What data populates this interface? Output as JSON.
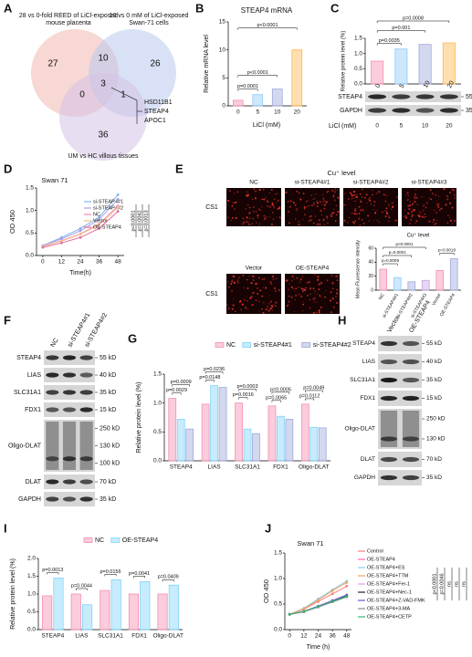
{
  "panel_labels": [
    "A",
    "B",
    "C",
    "D",
    "E",
    "F",
    "G",
    "H",
    "I",
    "J"
  ],
  "venn": {
    "sets": [
      "28 vs 0-fold REED of LiCl-exposed mouse placenta",
      "10 vs 0 mM of LiCl-exposed Swan-71 cells",
      "UM vs HC villous tissues"
    ],
    "counts": [
      27,
      10,
      26,
      3,
      0,
      1,
      36
    ],
    "genes": [
      "HSD11B1",
      "STEAP4",
      "APOC1"
    ]
  },
  "images": {
    "title": "Cu⁺ level",
    "columns": [
      "NC",
      "si-STEAP4#1",
      "si-STEAP4#2",
      "si-STEAP4#3"
    ],
    "columns2": [
      "Vector",
      "OE-STEAP4"
    ],
    "row_labels": [
      "CS1",
      "CS1"
    ]
  },
  "blots": {
    "C": {
      "rows": [
        {
          "label": "STEAP4",
          "markers": [
            "55 kD"
          ]
        },
        {
          "label": "GAPDH",
          "markers": [
            "35 kD"
          ]
        }
      ]
    },
    "F": {
      "lanes": [
        "NC",
        "si-STEAP4#1",
        "si-STEAP4#2"
      ],
      "rows": [
        {
          "label": "STEAP4",
          "markers": [
            "55 kD"
          ]
        },
        {
          "label": "LIAS",
          "markers": [
            "40 kD"
          ]
        },
        {
          "label": "SLC31A1",
          "markers": [
            "35 kD"
          ]
        },
        {
          "label": "FDX1",
          "markers": [
            "15 kD"
          ]
        },
        {
          "label": "Oligo-DLAT",
          "markers": [
            "250 kD",
            "130 kD",
            "100 kD"
          ]
        },
        {
          "label": "DLAT",
          "markers": [
            "70 kD"
          ]
        },
        {
          "label": "GAPDH",
          "markers": [
            "35 kD"
          ]
        }
      ]
    },
    "H": {
      "lanes": [
        "Vector",
        "OE-STEAP4"
      ],
      "rows": [
        {
          "label": "STEAP4",
          "markers": [
            "55 kD"
          ]
        },
        {
          "label": "LIAS",
          "markers": [
            "40 kD"
          ]
        },
        {
          "label": "SLC31A1",
          "markers": [
            "35 kD"
          ]
        },
        {
          "label": "FDX1",
          "markers": [
            "15 kD"
          ]
        },
        {
          "label": "Oligo-DLAT",
          "markers": [
            "250 kD",
            "130 kD"
          ]
        },
        {
          "label": "DLAT",
          "markers": [
            "70 kD"
          ]
        },
        {
          "label": "GAPDH",
          "markers": [
            "35 kD"
          ]
        }
      ]
    }
  },
  "chart_data": [
    {
      "type": "bar",
      "title": "STEAP4 mRNA",
      "ylabel": "Relative mRNA level",
      "xlabel": "LiCl (mM)",
      "categories": [
        "0",
        "5",
        "10",
        "20"
      ],
      "values": [
        1.0,
        2.0,
        3.0,
        10.0
      ],
      "colors": [
        "#f48fb1",
        "#90caf9",
        "#9fa8da",
        "#ffb74d"
      ],
      "ylim": [
        0,
        15
      ],
      "yticks": [
        0,
        5,
        10,
        15
      ],
      "annotations": [
        "p=0.0001",
        "p<0.0001",
        "p<0.0001"
      ]
    },
    {
      "type": "bar",
      "ylabel": "Relative protein level (%)",
      "xlabel": "LiCl (mM)",
      "categories": [
        "0",
        "5",
        "10",
        "20"
      ],
      "values": [
        0.75,
        1.15,
        1.3,
        1.35
      ],
      "colors": [
        "#f48fb1",
        "#90caf9",
        "#9fa8da",
        "#ffb74d"
      ],
      "ylim": [
        0,
        1.5
      ],
      "yticks": [
        {
          "value": 0,
          "label": "0.0"
        },
        0.5,
        {
          "value": 1,
          "label": "1.0"
        },
        1.5
      ],
      "annotations": [
        "p=0.0035",
        "p=0.001",
        "p=0.0008"
      ]
    },
    {
      "type": "line",
      "title": "Swan 71",
      "xlabel": "Time(h)",
      "ylabel": "OD 450",
      "x": [
        0,
        12,
        24,
        36,
        48
      ],
      "xlim": [
        -4,
        52
      ],
      "xticks": [
        0,
        12,
        24,
        36,
        48
      ],
      "ylim": [
        0,
        1.5
      ],
      "yticks": [
        {
          "value": 0,
          "label": "0.0"
        },
        0.5,
        {
          "value": 1,
          "label": "1.0"
        },
        1.5
      ],
      "series": [
        {
          "name": "si-STEAP4#1",
          "color": "#7fb3e8",
          "values": [
            0.22,
            0.4,
            0.6,
            0.85,
            1.35
          ]
        },
        {
          "name": "si-STEAP4#2",
          "color": "#a7a0e8",
          "values": [
            0.22,
            0.37,
            0.55,
            0.8,
            1.25
          ]
        },
        {
          "name": "NC",
          "color": "#f08ab0",
          "values": [
            0.2,
            0.33,
            0.48,
            0.7,
            1.1
          ]
        },
        {
          "name": "Vector",
          "color": "#f5c28a",
          "values": [
            0.2,
            0.32,
            0.47,
            0.68,
            1.07
          ]
        },
        {
          "name": "OE-STEAP4",
          "color": "#e46aa0",
          "values": [
            0.18,
            0.28,
            0.4,
            0.6,
            0.98
          ]
        }
      ],
      "annotations": [
        "p<0.0001",
        "p=0.0042",
        "p=0.0013"
      ]
    },
    {
      "type": "bar",
      "title": "Cu⁺ level",
      "ylabel": "Mean Fluorescence intensity",
      "categories": [
        "NC",
        "si-STEAP4#1",
        "si-STEAP4#2",
        "si-STEAP4#3",
        "Vector",
        "OE-STEAP4"
      ],
      "values": [
        30,
        18,
        12,
        14,
        28,
        45
      ],
      "colors": [
        "#f48fb1",
        "#90caf9",
        "#9fa8da",
        "#c5a3e0",
        "#f48fb1",
        "#9fa8da"
      ],
      "ylim": [
        0,
        60
      ],
      "yticks": [
        0,
        20,
        40,
        60
      ],
      "annotations": [
        "p=0.0009",
        "p=0.0001",
        "p<0.0001",
        "p=0.0018"
      ]
    },
    {
      "type": "bar",
      "ylabel": "Relative protein level (%)",
      "categories": [
        "STEAP4",
        "LIAS",
        "SLC31A1",
        "FDX1",
        "Oligo-DLAT"
      ],
      "series": [
        {
          "name": "NC",
          "color": "#f48fb1",
          "values": [
            1.08,
            0.98,
            1.0,
            0.95,
            0.98
          ]
        },
        {
          "name": "si-STEAP4#1",
          "color": "#81d4fa",
          "values": [
            0.72,
            1.3,
            0.55,
            0.77,
            0.58
          ]
        },
        {
          "name": "si-STEAP4#2",
          "color": "#9fa8da",
          "values": [
            0.55,
            1.27,
            0.47,
            0.72,
            0.57
          ]
        }
      ],
      "ylim": [
        0,
        1.5
      ],
      "yticks": [
        {
          "value": 0,
          "label": "0.0"
        },
        0.5,
        {
          "value": 1,
          "label": "1.0"
        },
        1.5
      ],
      "annotations": [
        "p=0.0009",
        "p=0.0029",
        "p=0.0236",
        "p=0.0148",
        "p=0.0003",
        "p=0.0016",
        "p=0.0005",
        "p=0.0065",
        "p=0.0049",
        "p=0.0112"
      ]
    },
    {
      "type": "bar",
      "ylabel": "Relative protein level (%)",
      "categories": [
        "STEAP4",
        "LIAS",
        "SLC31A1",
        "FDX1",
        "Oligo-DLAT"
      ],
      "series": [
        {
          "name": "NC",
          "color": "#f48fb1",
          "values": [
            0.95,
            1.0,
            1.1,
            1.0,
            1.0
          ]
        },
        {
          "name": "OE-STEAP4",
          "color": "#81d4fa",
          "values": [
            1.45,
            0.7,
            1.4,
            1.35,
            1.25
          ]
        }
      ],
      "ylim": [
        0,
        2
      ],
      "yticks": [
        {
          "value": 0,
          "label": "0.0"
        },
        0.5,
        {
          "value": 1,
          "label": "1.0"
        },
        1.5,
        {
          "value": 2,
          "label": "2.0"
        }
      ],
      "annotations": [
        "p=0.0013",
        "p=0.0044",
        "p=0.0156",
        "p=0.0041",
        "p=0.0409"
      ]
    },
    {
      "type": "line",
      "title": "Swan 71",
      "xlabel": "Time (h)",
      "ylabel": "OD 450",
      "x": [
        0,
        12,
        24,
        36,
        48
      ],
      "xlim": [
        -4,
        52
      ],
      "xticks": [
        0,
        12,
        24,
        36,
        48
      ],
      "ylim": [
        0,
        1.5
      ],
      "yticks": [
        {
          "value": 0,
          "label": "0.0"
        },
        0.5,
        {
          "value": 1,
          "label": "1.0"
        },
        1.5
      ],
      "series": [
        {
          "name": "Control",
          "color": "#f08080",
          "values": [
            0.3,
            0.4,
            0.55,
            0.7,
            0.85
          ]
        },
        {
          "name": "OE-STEAP4",
          "color": "#ff69b4",
          "values": [
            0.3,
            0.35,
            0.45,
            0.55,
            0.65
          ]
        },
        {
          "name": "OE-STEAP4+ES",
          "color": "#87ceeb",
          "values": [
            0.3,
            0.42,
            0.6,
            0.78,
            0.95
          ]
        },
        {
          "name": "OE-STEAP4+TTM",
          "color": "#f4a460",
          "values": [
            0.3,
            0.41,
            0.58,
            0.76,
            0.92
          ]
        },
        {
          "name": "OE-STEAP4+Fer-1",
          "color": "#dda0dd",
          "values": [
            0.3,
            0.36,
            0.46,
            0.56,
            0.67
          ]
        },
        {
          "name": "OE-STEAP4+Nec-1",
          "color": "#222222",
          "values": [
            0.3,
            0.35,
            0.45,
            0.55,
            0.66
          ]
        },
        {
          "name": "OE-STEAP4+Z-VAD-FMK",
          "color": "#6a5acd",
          "values": [
            0.3,
            0.36,
            0.46,
            0.57,
            0.68
          ]
        },
        {
          "name": "OE-STEAP4+3-MA",
          "color": "#8b8b8b",
          "values": [
            0.3,
            0.35,
            0.44,
            0.54,
            0.64
          ]
        },
        {
          "name": "OE-STEAP4+CETP",
          "color": "#3cb371",
          "values": [
            0.3,
            0.36,
            0.45,
            0.55,
            0.65
          ]
        }
      ],
      "annotations": [
        "p<0.0001",
        "p=0.0046",
        "ns",
        "ns",
        "ns"
      ]
    }
  ]
}
